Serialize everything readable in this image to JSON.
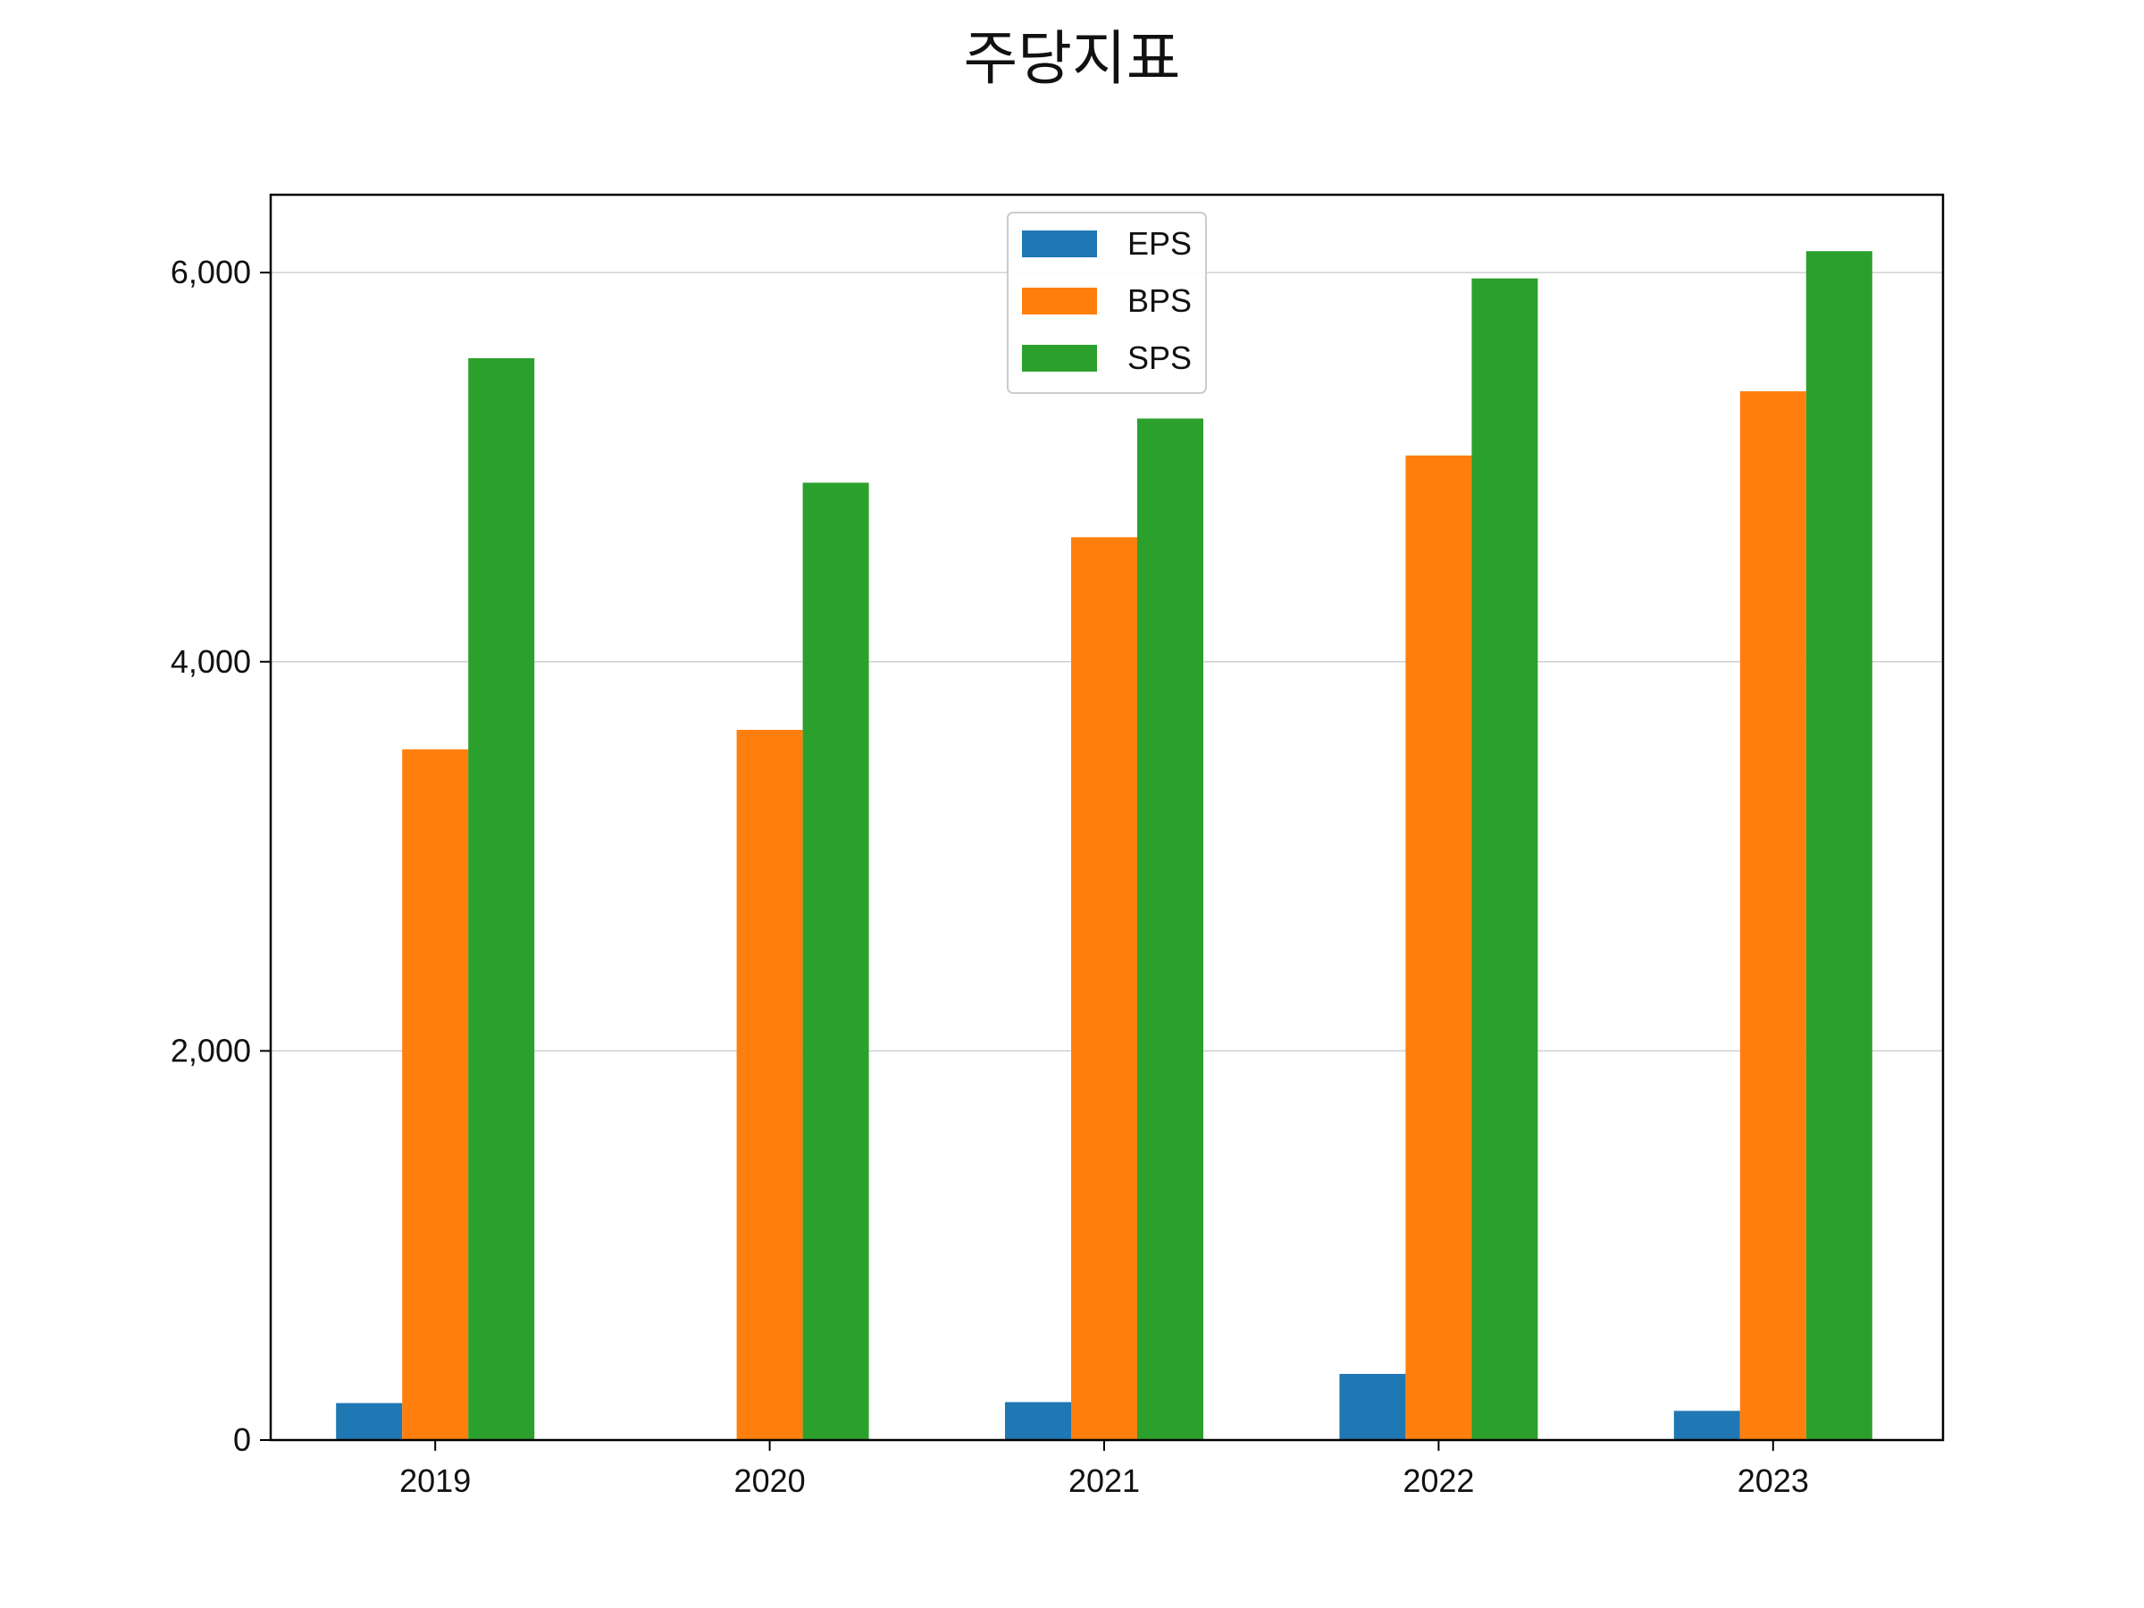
{
  "chart_data": {
    "type": "bar",
    "title": "주당지표",
    "xlabel": "",
    "ylabel": "",
    "categories": [
      "2019",
      "2020",
      "2021",
      "2022",
      "2023"
    ],
    "series": [
      {
        "name": "EPS",
        "color": "#1f77b4",
        "values": [
          190,
          0,
          195,
          340,
          150
        ]
      },
      {
        "name": "BPS",
        "color": "#ff7f0e",
        "values": [
          3550,
          3650,
          4640,
          5060,
          5390
        ]
      },
      {
        "name": "SPS",
        "color": "#2ca02c",
        "values": [
          5560,
          4920,
          5250,
          5970,
          6110
        ]
      }
    ],
    "ylim": [
      0,
      6400
    ],
    "yticks": [
      0,
      2000,
      4000,
      6000
    ],
    "ytick_labels": [
      "0",
      "2,000",
      "4,000",
      "6,000"
    ],
    "grid": "horizontal",
    "legend_position": "top-center"
  }
}
